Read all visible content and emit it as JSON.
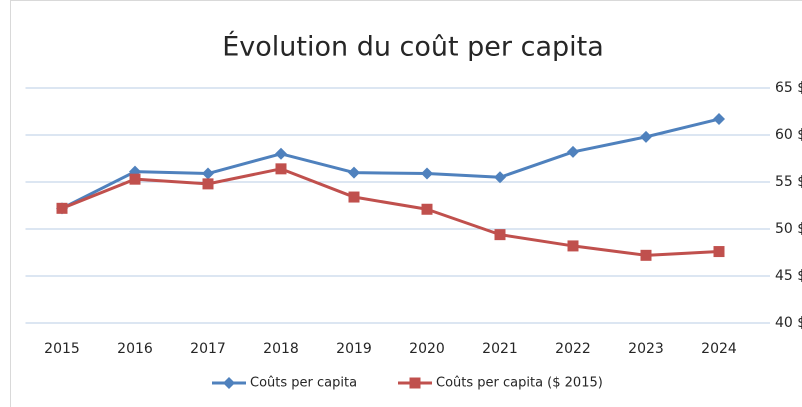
{
  "chart_data": {
    "type": "line",
    "title": "Évolution du coût per capita",
    "categories": [
      "2015",
      "2016",
      "2017",
      "2018",
      "2019",
      "2020",
      "2021",
      "2022",
      "2023",
      "2024"
    ],
    "series": [
      {
        "name": "Coûts per capita",
        "color": "#4f81bd",
        "marker": "diamond",
        "values": [
          52.2,
          56.1,
          55.9,
          58.0,
          56.0,
          55.9,
          55.5,
          58.2,
          59.8,
          61.7
        ]
      },
      {
        "name": "Coûts per capita ($ 2015)",
        "color": "#c0504d",
        "marker": "square",
        "values": [
          52.2,
          55.3,
          54.8,
          56.4,
          53.4,
          52.1,
          49.4,
          48.2,
          47.2,
          47.6
        ]
      }
    ],
    "ylim": [
      40,
      65
    ],
    "yticks": [
      {
        "value": 40,
        "label": "40 $"
      },
      {
        "value": 45,
        "label": "45 $"
      },
      {
        "value": 50,
        "label": "50 $"
      },
      {
        "value": 55,
        "label": "55 $"
      },
      {
        "value": 60,
        "label": "60 $"
      },
      {
        "value": 65,
        "label": "65 $"
      }
    ],
    "grid": true,
    "legend": "bottom"
  }
}
